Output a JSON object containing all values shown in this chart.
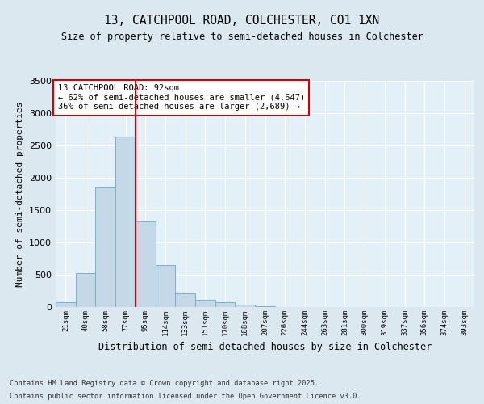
{
  "title1": "13, CATCHPOOL ROAD, COLCHESTER, CO1 1XN",
  "title2": "Size of property relative to semi-detached houses in Colchester",
  "xlabel": "Distribution of semi-detached houses by size in Colchester",
  "ylabel": "Number of semi-detached properties",
  "bins": [
    "21sqm",
    "40sqm",
    "58sqm",
    "77sqm",
    "95sqm",
    "114sqm",
    "133sqm",
    "151sqm",
    "170sqm",
    "188sqm",
    "207sqm",
    "226sqm",
    "244sqm",
    "263sqm",
    "281sqm",
    "300sqm",
    "319sqm",
    "337sqm",
    "356sqm",
    "374sqm",
    "393sqm"
  ],
  "bar_values": [
    80,
    530,
    1850,
    2640,
    1330,
    650,
    215,
    110,
    75,
    40,
    10,
    5,
    3,
    2,
    1,
    1,
    0,
    0,
    0,
    0,
    0
  ],
  "bar_color": "#c5d8e8",
  "bar_edge_color": "#7aaec8",
  "vline_color": "#cc0000",
  "vline_pos": 3.5,
  "ylim": [
    0,
    3500
  ],
  "yticks": [
    0,
    500,
    1000,
    1500,
    2000,
    2500,
    3000,
    3500
  ],
  "annotation_title": "13 CATCHPOOL ROAD: 92sqm",
  "annotation_line1": "← 62% of semi-detached houses are smaller (4,647)",
  "annotation_line2": "36% of semi-detached houses are larger (2,689) →",
  "annotation_box_color": "#ffffff",
  "annotation_edge_color": "#cc0000",
  "footer1": "Contains HM Land Registry data © Crown copyright and database right 2025.",
  "footer2": "Contains public sector information licensed under the Open Government Licence v3.0.",
  "bg_color": "#dce8f0",
  "plot_bg_color": "#e4f0f8"
}
